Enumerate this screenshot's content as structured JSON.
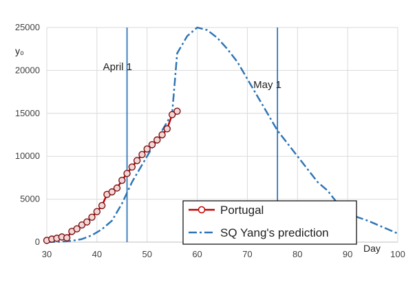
{
  "chart_data": {
    "type": "line",
    "title": "",
    "xlabel": "Day",
    "ylabel": "y₀",
    "xlim": [
      30,
      100
    ],
    "ylim": [
      0,
      25000
    ],
    "xticks": [
      30,
      40,
      50,
      60,
      70,
      80,
      90,
      100
    ],
    "yticks": [
      0,
      5000,
      10000,
      15000,
      20000,
      25000
    ],
    "grid": true,
    "legend_position": "bottom-right",
    "series": [
      {
        "name": "Portugal",
        "color": "#c00000",
        "marker": "open-circle",
        "style": "solid",
        "x": [
          30,
          31,
          32,
          33,
          34,
          35,
          36,
          37,
          38,
          39,
          40,
          41,
          42,
          43,
          44,
          45,
          46,
          47,
          48,
          49,
          50,
          51,
          52,
          53,
          54,
          55,
          56
        ],
        "y": [
          200,
          350,
          450,
          600,
          500,
          1250,
          1550,
          2000,
          2350,
          2900,
          3550,
          4250,
          5550,
          5850,
          6300,
          7200,
          8000,
          8750,
          9500,
          10200,
          10850,
          11350,
          11900,
          12500,
          13200,
          14850,
          15250
        ]
      },
      {
        "name": "SQ Yang's prediction",
        "color": "#2e75b6",
        "style": "dash-dot",
        "x": [
          30,
          33,
          35,
          37,
          39,
          41,
          43,
          45,
          47,
          49,
          51,
          53,
          54,
          55,
          56,
          58,
          60,
          62,
          64,
          66,
          68,
          70,
          72,
          74,
          76,
          78,
          80,
          82,
          84,
          86,
          88,
          90,
          92,
          94,
          96,
          98,
          100
        ],
        "y": [
          0,
          50,
          150,
          350,
          800,
          1500,
          2500,
          4500,
          7000,
          9000,
          11000,
          13000,
          14000,
          15000,
          22000,
          24000,
          25000,
          24700,
          23800,
          22500,
          21000,
          19000,
          17000,
          15000,
          13000,
          11500,
          10000,
          8500,
          7000,
          6000,
          4500,
          3500,
          2900,
          2500,
          2000,
          1500,
          1000
        ]
      }
    ],
    "vertical_lines": [
      {
        "x": 46,
        "label": "April 1",
        "color": "#2e75b6"
      },
      {
        "x": 76,
        "label": "May 1",
        "color": "#2e75b6"
      }
    ]
  }
}
